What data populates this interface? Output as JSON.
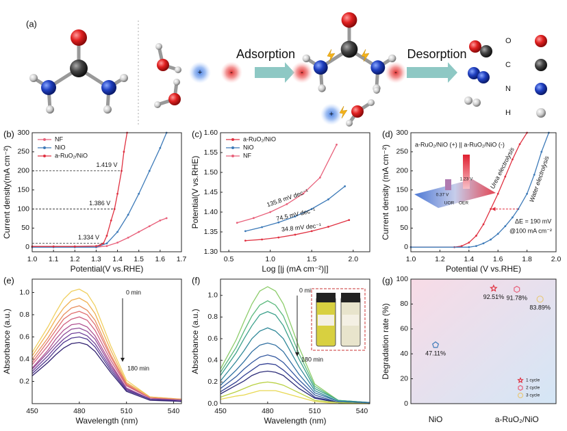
{
  "schematic": {
    "label": "(a)",
    "steps": [
      "Adsorption",
      "Desorption"
    ],
    "ions": [
      "+",
      "-"
    ],
    "elements": [
      "O",
      "C",
      "N",
      "H"
    ]
  },
  "chart_data": [
    {
      "type": "line",
      "panel_label": "(b)",
      "x_label": "Potential(V vs.RHE)",
      "y_label": "Current density(mA cm⁻²)",
      "xlim": [
        1.0,
        1.7
      ],
      "xticks": [
        {
          "value": 1.0,
          "label": "1.0"
        },
        1.1,
        1.2,
        1.3,
        1.4,
        1.5,
        1.6,
        1.7
      ],
      "ylim": [
        -12,
        300
      ],
      "yticks": [
        0,
        50,
        100,
        150,
        200,
        250,
        300
      ],
      "legend": "upper left",
      "markers": true,
      "series": [
        {
          "name": "NF",
          "color": "#e8607a",
          "x": [
            1.0,
            1.1,
            1.2,
            1.3,
            1.35,
            1.4,
            1.45,
            1.5,
            1.55,
            1.6,
            1.63
          ],
          "values": [
            0,
            0,
            0,
            0,
            3,
            12,
            25,
            40,
            55,
            70,
            76
          ]
        },
        {
          "name": "NiO",
          "color": "#3d7ab8",
          "x": [
            1.0,
            1.1,
            1.2,
            1.3,
            1.35,
            1.4,
            1.45,
            1.5,
            1.55,
            1.6,
            1.63
          ],
          "values": [
            0,
            0,
            0,
            0,
            10,
            40,
            85,
            140,
            200,
            260,
            300
          ]
        },
        {
          "name": "a-RuO₂/NiO",
          "color": "#e03040",
          "x": [
            1.0,
            1.1,
            1.2,
            1.3,
            1.32,
            1.334,
            1.35,
            1.37,
            1.386,
            1.4,
            1.419,
            1.43,
            1.445
          ],
          "values": [
            2,
            2,
            2,
            3,
            6,
            10,
            30,
            70,
            100,
            140,
            200,
            250,
            300
          ]
        }
      ],
      "reference_y": [
        200,
        100,
        10
      ],
      "annotations": [
        "1.419 V",
        "1.386 V",
        "1.334 V"
      ]
    },
    {
      "type": "line",
      "panel_label": "(c)",
      "x_label": "Log [|j (mA cm⁻²)|]",
      "y_label": "Potential(V vs.RHE)",
      "xlim": [
        0.4,
        2.2
      ],
      "xticks": [
        0.5,
        {
          "value": 1.0,
          "label": "1.0"
        },
        1.5,
        {
          "value": 2.0,
          "label": "2.0"
        }
      ],
      "ylim": [
        1.3,
        1.6
      ],
      "yticks": [
        {
          "value": 1.3,
          "label": "1.30"
        },
        1.35,
        {
          "value": 1.4,
          "label": "1.40"
        },
        1.45,
        {
          "value": 1.5,
          "label": "1.50"
        },
        1.55,
        {
          "value": 1.6,
          "label": "1.60"
        }
      ],
      "legend": "upper left",
      "markers": true,
      "series": [
        {
          "name": "a-RuO₂/NiO",
          "color": "#e03040",
          "x": [
            0.7,
            0.9,
            1.1,
            1.3,
            1.5,
            1.7,
            1.95
          ],
          "values": [
            1.328,
            1.331,
            1.336,
            1.343,
            1.352,
            1.363,
            1.38
          ]
        },
        {
          "name": "NiO",
          "color": "#3d7ab8",
          "x": [
            0.7,
            0.9,
            1.1,
            1.3,
            1.5,
            1.7,
            1.9
          ],
          "values": [
            1.352,
            1.362,
            1.374,
            1.389,
            1.408,
            1.432,
            1.465
          ]
        },
        {
          "name": "NF",
          "color": "#e8607a",
          "x": [
            0.6,
            0.8,
            1.0,
            1.2,
            1.4,
            1.6,
            1.8
          ],
          "values": [
            1.373,
            1.385,
            1.4,
            1.42,
            1.447,
            1.487,
            1.57
          ]
        }
      ],
      "annotations": [
        "34.8 mV dec⁻¹",
        "74.5 mV dec⁻¹",
        "135.8 mV dec⁻¹"
      ]
    },
    {
      "type": "line",
      "panel_label": "(d)",
      "x_label": "Potential (V vs.RHE)",
      "y_label": "Current density (mA cm⁻²)",
      "xlim": [
        1.0,
        2.0
      ],
      "xticks": [
        {
          "value": 1.0,
          "label": "1.0"
        },
        1.2,
        1.4,
        1.6,
        1.8,
        {
          "value": 2.0,
          "label": "2.0"
        }
      ],
      "ylim": [
        -12,
        300
      ],
      "yticks": [
        0,
        50,
        100,
        150,
        200,
        250,
        300
      ],
      "markers": true,
      "series": [
        {
          "name": "Urea electrolysis",
          "color": "#e03040",
          "x": [
            1.0,
            1.3,
            1.35,
            1.4,
            1.45,
            1.5,
            1.55,
            1.6,
            1.65,
            1.7,
            1.75,
            1.8
          ],
          "values": [
            0,
            0,
            3,
            12,
            30,
            60,
            100,
            140,
            185,
            230,
            270,
            300
          ]
        },
        {
          "name": "Water electrolysis",
          "color": "#3d7ab8",
          "x": [
            1.0,
            1.4,
            1.45,
            1.5,
            1.55,
            1.6,
            1.65,
            1.7,
            1.74,
            1.8,
            1.85,
            1.9,
            1.95
          ],
          "values": [
            0,
            0,
            3,
            10,
            20,
            35,
            55,
            78,
            100,
            140,
            190,
            250,
            300
          ]
        }
      ],
      "reference_y": [
        100
      ],
      "annotations": [
        "a-RuO₂/NiO (+) || a-RuO₂/NiO (-)",
        "ΔE = 190 mV",
        "@100 mA cm⁻²",
        "1.23 V",
        "0.37 V",
        "UOR",
        "OER"
      ]
    },
    {
      "type": "line",
      "panel_label": "(e)",
      "x_label": "Wavelength (nm)",
      "y_label": "Absorbance (a.u.)",
      "x": [
        450,
        460,
        465,
        470,
        475,
        480,
        485,
        490,
        500,
        510,
        525,
        545
      ],
      "xlim": [
        450,
        545
      ],
      "xticks": [
        450,
        480,
        510,
        540
      ],
      "ylim": [
        0,
        1.12
      ],
      "yticks": [
        0.2,
        0.4,
        0.6,
        0.8,
        {
          "value": 1.0,
          "label": "1.0"
        }
      ],
      "series": [
        {
          "color": "#f0d060",
          "values": [
            0.46,
            0.69,
            0.82,
            0.94,
            1.01,
            1.03,
            0.99,
            0.88,
            0.52,
            0.21,
            0.06,
            0.04
          ]
        },
        {
          "color": "#f0b050",
          "values": [
            0.43,
            0.64,
            0.76,
            0.86,
            0.93,
            0.95,
            0.91,
            0.81,
            0.48,
            0.19,
            0.06,
            0.04
          ]
        },
        {
          "color": "#e89060",
          "values": [
            0.4,
            0.59,
            0.7,
            0.8,
            0.86,
            0.88,
            0.84,
            0.75,
            0.44,
            0.18,
            0.05,
            0.04
          ]
        },
        {
          "color": "#e07070",
          "values": [
            0.37,
            0.56,
            0.66,
            0.76,
            0.81,
            0.83,
            0.8,
            0.71,
            0.42,
            0.17,
            0.05,
            0.03
          ]
        },
        {
          "color": "#d06080",
          "values": [
            0.35,
            0.52,
            0.62,
            0.71,
            0.76,
            0.78,
            0.75,
            0.66,
            0.39,
            0.16,
            0.05,
            0.03
          ]
        },
        {
          "color": "#b05090",
          "values": [
            0.32,
            0.48,
            0.58,
            0.66,
            0.71,
            0.72,
            0.69,
            0.61,
            0.36,
            0.14,
            0.04,
            0.03
          ]
        },
        {
          "color": "#904c98",
          "values": [
            0.31,
            0.46,
            0.54,
            0.62,
            0.67,
            0.68,
            0.65,
            0.58,
            0.34,
            0.14,
            0.04,
            0.03
          ]
        },
        {
          "color": "#70409a",
          "values": [
            0.29,
            0.43,
            0.51,
            0.58,
            0.63,
            0.64,
            0.61,
            0.54,
            0.32,
            0.13,
            0.04,
            0.03
          ]
        },
        {
          "color": "#503890",
          "values": [
            0.27,
            0.4,
            0.48,
            0.55,
            0.59,
            0.6,
            0.58,
            0.51,
            0.3,
            0.12,
            0.04,
            0.02
          ]
        },
        {
          "color": "#302070",
          "values": [
            0.25,
            0.37,
            0.44,
            0.5,
            0.54,
            0.55,
            0.53,
            0.47,
            0.28,
            0.11,
            0.03,
            0.02
          ]
        }
      ],
      "annotations": [
        "0 min",
        "180 min"
      ]
    },
    {
      "type": "line",
      "panel_label": "(f)",
      "x_label": "Wavelength (nm)",
      "y_label": "Absorbance (a.u.)",
      "x": [
        450,
        460,
        465,
        470,
        475,
        480,
        485,
        490,
        500,
        510,
        525,
        545
      ],
      "xlim": [
        450,
        545
      ],
      "xticks": [
        450,
        480,
        510,
        540
      ],
      "ylim": [
        0,
        1.15
      ],
      "yticks": [
        {
          "value": 0,
          "label": "0.0"
        },
        0.2,
        0.4,
        0.6,
        0.8,
        {
          "value": 1.0,
          "label": "1.0"
        }
      ],
      "series": [
        {
          "color": "#8ccc6a",
          "values": [
            0.32,
            0.59,
            0.76,
            0.92,
            1.04,
            1.08,
            1.04,
            0.92,
            0.52,
            0.18,
            0.03,
            0.01
          ]
        },
        {
          "color": "#5ab87c",
          "values": [
            0.29,
            0.52,
            0.67,
            0.81,
            0.91,
            0.95,
            0.91,
            0.81,
            0.46,
            0.16,
            0.03,
            0.01
          ]
        },
        {
          "color": "#3aa08a",
          "values": [
            0.26,
            0.47,
            0.6,
            0.72,
            0.82,
            0.85,
            0.82,
            0.72,
            0.41,
            0.14,
            0.03,
            0.01
          ]
        },
        {
          "color": "#2f8898",
          "values": [
            0.21,
            0.39,
            0.49,
            0.6,
            0.67,
            0.7,
            0.67,
            0.6,
            0.34,
            0.12,
            0.02,
            0.01
          ]
        },
        {
          "color": "#2e6ea0",
          "values": [
            0.17,
            0.31,
            0.39,
            0.48,
            0.54,
            0.56,
            0.54,
            0.48,
            0.27,
            0.1,
            0.02,
            0.01
          ]
        },
        {
          "color": "#30559e",
          "values": [
            0.14,
            0.25,
            0.32,
            0.38,
            0.43,
            0.45,
            0.43,
            0.38,
            0.22,
            0.08,
            0.01,
            0
          ]
        },
        {
          "color": "#313e92",
          "values": [
            0.11,
            0.2,
            0.26,
            0.31,
            0.36,
            0.37,
            0.36,
            0.31,
            0.18,
            0.06,
            0.01,
            0
          ]
        },
        {
          "color": "#2c2c78",
          "values": [
            0.09,
            0.17,
            0.21,
            0.26,
            0.29,
            0.3,
            0.29,
            0.26,
            0.14,
            0.05,
            0.01,
            0
          ]
        },
        {
          "color": "#b8d040",
          "values": [
            0.06,
            0.11,
            0.14,
            0.17,
            0.19,
            0.2,
            0.19,
            0.17,
            0.1,
            0.03,
            0.01,
            0
          ]
        },
        {
          "color": "#e8d850",
          "values": [
            0.04,
            0.07,
            0.08,
            0.1,
            0.12,
            0.12,
            0.12,
            0.1,
            0.06,
            0.02,
            0,
            0
          ]
        }
      ],
      "annotations": [
        "0 min",
        "180 min"
      ]
    },
    {
      "type": "scatter",
      "panel_label": "(g)",
      "y_label": "Degradation rate (%)",
      "background": true,
      "categories": [
        "NiO",
        "a-RuO₂/NiO"
      ],
      "ylim": [
        0,
        100
      ],
      "yticks": [
        0,
        20,
        40,
        60,
        80,
        100
      ],
      "legend": "lower right",
      "series": [
        {
          "color": "#3d7ab8",
          "marker": "pentagon",
          "values": [
            47.11,
            null
          ],
          "value_labels": [
            "47.11%",
            null
          ]
        },
        {
          "name": "1 cycle",
          "color": "#e03040",
          "marker": "star",
          "values": [
            null,
            92.51
          ],
          "value_labels": [
            null,
            "92.51%"
          ]
        },
        {
          "name": "2 cycle",
          "color": "#e8607a",
          "marker": "hexagon",
          "values": [
            null,
            91.78
          ],
          "value_labels": [
            null,
            "91.78%"
          ]
        },
        {
          "name": "3 cycle",
          "color": "#e8c87a",
          "marker": "circle",
          "values": [
            null,
            83.89
          ],
          "value_labels": [
            null,
            "83.89%"
          ]
        }
      ]
    }
  ]
}
